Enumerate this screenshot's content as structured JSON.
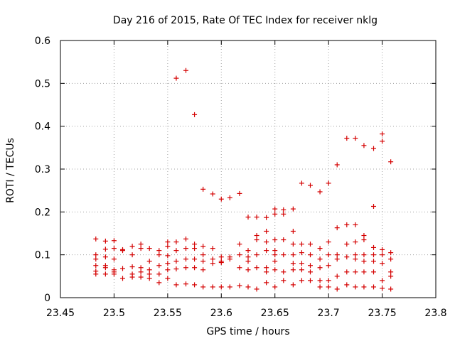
{
  "chart_data": {
    "type": "scatter",
    "title": "Day 216 of 2015, Rate Of TEC Index for receiver nklg",
    "xlabel": "GPS time / hours",
    "ylabel": "ROTI / TECUs",
    "xlim": [
      23.45,
      23.8
    ],
    "ylim": [
      0,
      0.6
    ],
    "xticks": [
      23.45,
      23.5,
      23.55,
      23.6,
      23.65,
      23.7,
      23.75,
      23.8
    ],
    "xtick_labels": [
      "23.45",
      "23.5",
      "23.55",
      "23.6",
      "23.65",
      "23.7",
      "23.75",
      "23.8"
    ],
    "yticks": [
      0,
      0.1,
      0.2,
      0.3,
      0.4,
      0.5,
      0.6
    ],
    "ytick_labels": [
      "0",
      "0.1",
      "0.2",
      "0.3",
      "0.4",
      "0.5",
      "0.6"
    ],
    "grid": true,
    "marker": "+",
    "color": "#d40000",
    "series": [
      {
        "name": "nklg",
        "x": [
          23.483,
          23.483,
          23.483,
          23.483,
          23.483,
          23.483,
          23.492,
          23.492,
          23.492,
          23.492,
          23.492,
          23.492,
          23.5,
          23.5,
          23.5,
          23.5,
          23.5,
          23.5,
          23.508,
          23.508,
          23.508,
          23.508,
          23.517,
          23.517,
          23.517,
          23.517,
          23.517,
          23.525,
          23.525,
          23.525,
          23.525,
          23.525,
          23.533,
          23.533,
          23.533,
          23.533,
          23.533,
          23.542,
          23.542,
          23.542,
          23.542,
          23.542,
          23.55,
          23.55,
          23.55,
          23.55,
          23.55,
          23.55,
          23.558,
          23.558,
          23.558,
          23.558,
          23.558,
          23.558,
          23.567,
          23.567,
          23.567,
          23.567,
          23.567,
          23.567,
          23.575,
          23.575,
          23.575,
          23.575,
          23.575,
          23.575,
          23.583,
          23.583,
          23.583,
          23.583,
          23.583,
          23.583,
          23.592,
          23.592,
          23.592,
          23.592,
          23.592,
          23.6,
          23.6,
          23.6,
          23.6,
          23.6,
          23.608,
          23.608,
          23.608,
          23.608,
          23.617,
          23.617,
          23.617,
          23.617,
          23.617,
          23.625,
          23.625,
          23.625,
          23.625,
          23.625,
          23.625,
          23.633,
          23.633,
          23.633,
          23.633,
          23.633,
          23.633,
          23.642,
          23.642,
          23.642,
          23.642,
          23.642,
          23.642,
          23.642,
          23.65,
          23.65,
          23.65,
          23.65,
          23.65,
          23.65,
          23.65,
          23.65,
          23.658,
          23.658,
          23.658,
          23.658,
          23.658,
          23.658,
          23.667,
          23.667,
          23.667,
          23.667,
          23.667,
          23.667,
          23.667,
          23.675,
          23.675,
          23.675,
          23.675,
          23.675,
          23.675,
          23.683,
          23.683,
          23.683,
          23.683,
          23.683,
          23.683,
          23.692,
          23.692,
          23.692,
          23.692,
          23.692,
          23.692,
          23.7,
          23.7,
          23.7,
          23.7,
          23.7,
          23.7,
          23.708,
          23.708,
          23.708,
          23.708,
          23.708,
          23.708,
          23.717,
          23.717,
          23.717,
          23.717,
          23.717,
          23.717,
          23.725,
          23.725,
          23.725,
          23.725,
          23.725,
          23.725,
          23.725,
          23.733,
          23.733,
          23.733,
          23.733,
          23.733,
          23.733,
          23.733,
          23.742,
          23.742,
          23.742,
          23.742,
          23.742,
          23.742,
          23.742,
          23.75,
          23.75,
          23.75,
          23.75,
          23.75,
          23.75,
          23.75,
          23.758,
          23.758,
          23.758,
          23.758,
          23.758,
          23.758
        ],
        "y": [
          0.137,
          0.1,
          0.09,
          0.075,
          0.062,
          0.055,
          0.132,
          0.113,
          0.095,
          0.075,
          0.07,
          0.055,
          0.133,
          0.115,
          0.09,
          0.065,
          0.06,
          0.055,
          0.112,
          0.11,
          0.068,
          0.045,
          0.12,
          0.1,
          0.072,
          0.055,
          0.048,
          0.125,
          0.115,
          0.07,
          0.06,
          0.048,
          0.115,
          0.085,
          0.065,
          0.055,
          0.045,
          0.11,
          0.1,
          0.075,
          0.055,
          0.035,
          0.13,
          0.12,
          0.098,
          0.08,
          0.065,
          0.045,
          0.512,
          0.13,
          0.11,
          0.085,
          0.067,
          0.03,
          0.53,
          0.137,
          0.115,
          0.09,
          0.07,
          0.032,
          0.427,
          0.125,
          0.115,
          0.09,
          0.07,
          0.03,
          0.253,
          0.12,
          0.1,
          0.085,
          0.065,
          0.025,
          0.242,
          0.115,
          0.09,
          0.08,
          0.025,
          0.23,
          0.095,
          0.085,
          0.082,
          0.025,
          0.233,
          0.095,
          0.09,
          0.025,
          0.243,
          0.125,
          0.1,
          0.07,
          0.028,
          0.188,
          0.11,
          0.095,
          0.085,
          0.065,
          0.025,
          0.188,
          0.145,
          0.135,
          0.1,
          0.07,
          0.02,
          0.187,
          0.155,
          0.13,
          0.11,
          0.07,
          0.06,
          0.035,
          0.207,
          0.195,
          0.135,
          0.11,
          0.1,
          0.085,
          0.065,
          0.025,
          0.205,
          0.195,
          0.135,
          0.1,
          0.06,
          0.04,
          0.207,
          0.155,
          0.125,
          0.1,
          0.08,
          0.065,
          0.03,
          0.267,
          0.125,
          0.105,
          0.08,
          0.065,
          0.04,
          0.262,
          0.125,
          0.1,
          0.075,
          0.06,
          0.04,
          0.247,
          0.115,
          0.09,
          0.07,
          0.04,
          0.025,
          0.267,
          0.13,
          0.1,
          0.075,
          0.04,
          0.025,
          0.31,
          0.163,
          0.1,
          0.09,
          0.05,
          0.02,
          0.372,
          0.17,
          0.125,
          0.095,
          0.06,
          0.03,
          0.372,
          0.17,
          0.13,
          0.1,
          0.09,
          0.06,
          0.025,
          0.355,
          0.145,
          0.135,
          0.1,
          0.085,
          0.06,
          0.025,
          0.348,
          0.213,
          0.117,
          0.1,
          0.085,
          0.06,
          0.025,
          0.382,
          0.365,
          0.112,
          0.1,
          0.08,
          0.04,
          0.022,
          0.317,
          0.105,
          0.09,
          0.06,
          0.05,
          0.02
        ]
      }
    ]
  }
}
